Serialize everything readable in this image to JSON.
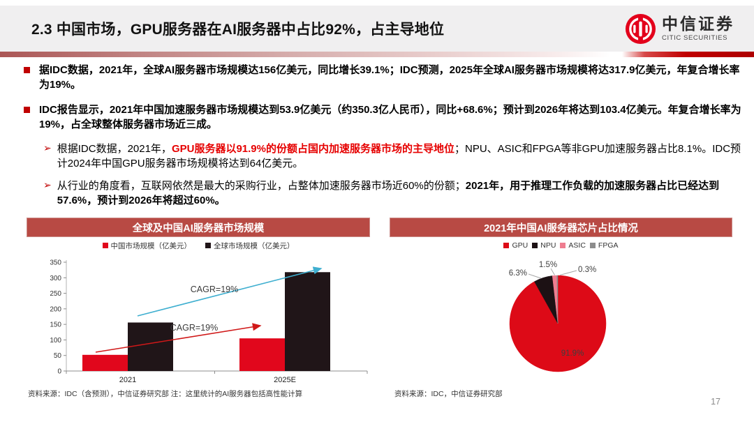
{
  "slide": {
    "title": "2.3 中国市场，GPU服务器在AI服务器中占比92%，占主导地位",
    "page_number": "17",
    "logo": {
      "cn_name": "中信证券",
      "en_name": "CITIC SECURITIES"
    }
  },
  "colors": {
    "accent_red": "#c00000",
    "emphasis_red": "#e60000",
    "panel_header": "#b84a44",
    "header_band": "#f0eff0",
    "arrow_blue": "#3fafd0",
    "arrow_red": "#d01818"
  },
  "bullets": [
    {
      "level": 1,
      "segments": [
        {
          "text": "据IDC数据，2021年，全球AI服务器市场规模达156亿美元，同比增长39.1%；IDC预测，2025年全球AI服务器市场规模将达317.9亿美元，年复合增长率为19%。",
          "bold": true
        }
      ]
    },
    {
      "level": 1,
      "segments": [
        {
          "text": "IDC报告显示，2021年中国加速服务器市场规模达到53.9亿美元（约350.3亿人民币），同比+68.6%；预计到2026年将达到103.4亿美元。年复合增长率为19%，占全球整体服务器市场近三成。",
          "bold": true
        }
      ]
    },
    {
      "level": 2,
      "segments": [
        {
          "text": "根据IDC数据，2021年，"
        },
        {
          "text": "GPU服务器以91.9%的份额占国内加速服务器市场的主导地位",
          "bold": true,
          "color": "red"
        },
        {
          "text": "；NPU、ASIC和FPGA等非GPU加速服务器占比8.1%。IDC预计2024年中国GPU服务器市场规模将达到64亿美元。"
        }
      ]
    },
    {
      "level": 2,
      "segments": [
        {
          "text": "从行业的角度看，互联网依然是最大的采购行业，占整体加速服务器市场近60%的份额；"
        },
        {
          "text": "2021年，用于推理工作负载的加速服务器占比已经达到57.6%，预计到2026年将超过60%。",
          "bold": true
        }
      ]
    }
  ],
  "chart_data": [
    {
      "type": "bar",
      "title": "全球及中国AI服务器市场规模",
      "categories": [
        "2021",
        "2025E"
      ],
      "series": [
        {
          "name": "中国市场规模（亿美元）",
          "color": "#e1071c",
          "values": [
            52,
            105
          ]
        },
        {
          "name": "全球市场规模（亿美元）",
          "color": "#201518",
          "values": [
            156,
            318
          ]
        }
      ],
      "ylim": [
        0,
        350
      ],
      "ytick_step": 50,
      "grid": false,
      "legend_position": "top",
      "annotations": [
        {
          "text": "CAGR=19%",
          "series": "全球市场规模（亿美元）",
          "color": "#3fafd0"
        },
        {
          "text": "CAGR=19%",
          "series": "中国市场规模（亿美元）",
          "color": "#d01818"
        }
      ]
    },
    {
      "type": "pie",
      "title": "2021年中国AI服务器芯片占比情况",
      "labels": [
        "GPU",
        "NPU",
        "ASIC",
        "FPGA"
      ],
      "values": [
        91.9,
        6.3,
        1.5,
        0.3
      ],
      "data_labels": [
        "91.9%",
        "6.3%",
        "1.5%",
        "0.3%"
      ],
      "colors": [
        "#dd0a17",
        "#1c1114",
        "#ef7d90",
        "#8c8c8c"
      ],
      "legend_position": "top"
    }
  ],
  "footers": {
    "left": "资料来源：IDC（含预测），中信证券研究部 注：这里统计的AI服务器包括高性能计算",
    "right": "资料来源：IDC，中信证券研究部"
  }
}
